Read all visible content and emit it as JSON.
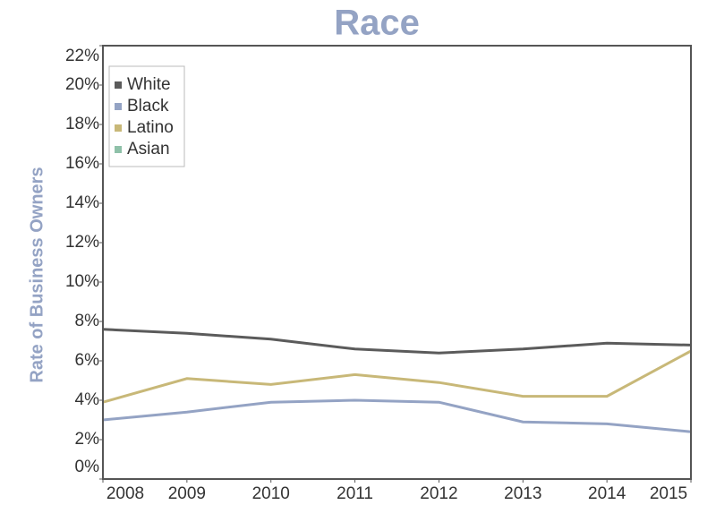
{
  "chart_data": {
    "type": "line",
    "title": "Race",
    "y_label": "Rate of Business Owners",
    "x": [
      2008,
      2009,
      2010,
      2011,
      2012,
      2013,
      2014,
      2015
    ],
    "xlim": [
      2008,
      2015
    ],
    "xticks": [
      2008,
      2009,
      2010,
      2011,
      2012,
      2013,
      2014,
      2015
    ],
    "ylim": [
      0,
      22
    ],
    "yticks": [
      {
        "value": 0,
        "label": "0%"
      },
      {
        "value": 2,
        "label": "2%"
      },
      {
        "value": 4,
        "label": "4%"
      },
      {
        "value": 6,
        "label": "6%"
      },
      {
        "value": 8,
        "label": "8%"
      },
      {
        "value": 10,
        "label": "10%"
      },
      {
        "value": 12,
        "label": "12%"
      },
      {
        "value": 14,
        "label": "14%"
      },
      {
        "value": 16,
        "label": "16%"
      },
      {
        "value": 18,
        "label": "18%"
      },
      {
        "value": 20,
        "label": "20%"
      },
      {
        "value": 22,
        "label": "22%"
      }
    ],
    "legend": "upper left",
    "series": [
      {
        "name": "White",
        "color": "#5b5b5b",
        "values": [
          7.6,
          7.4,
          7.1,
          6.6,
          6.4,
          6.6,
          6.9,
          6.8
        ]
      },
      {
        "name": "Black",
        "color": "#94a3c4",
        "values": [
          3.0,
          3.4,
          3.9,
          4.0,
          3.9,
          2.9,
          2.8,
          2.4
        ]
      },
      {
        "name": "Latino",
        "color": "#c8b878",
        "values": [
          3.9,
          5.1,
          4.8,
          5.3,
          4.9,
          4.2,
          4.2,
          6.5
        ]
      },
      {
        "name": "Asian",
        "color": "#8fc1a9",
        "values": [
          null,
          null,
          null,
          null,
          null,
          null,
          null,
          null
        ]
      }
    ]
  }
}
